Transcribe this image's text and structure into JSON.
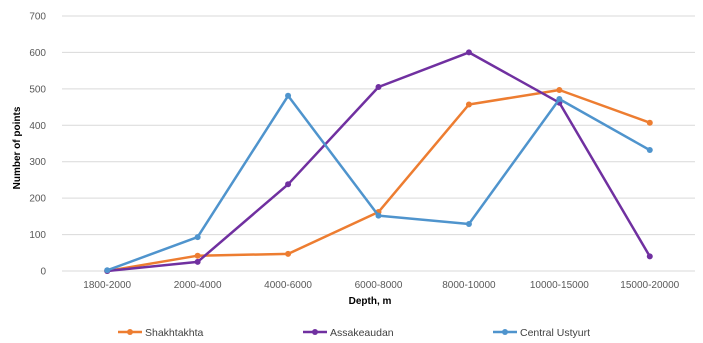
{
  "chart_data": {
    "type": "line",
    "categories": [
      "1800-2000",
      "2000-4000",
      "4000-6000",
      "6000-8000",
      "8000-10000",
      "10000-15000",
      "15000-20000"
    ],
    "series": [
      {
        "name": "Shakhtakhta",
        "color": "#ED7D31",
        "values": [
          0,
          42,
          47,
          162,
          457,
          497,
          407
        ]
      },
      {
        "name": "Assakeaudan",
        "color": "#7030A0",
        "values": [
          0,
          25,
          238,
          505,
          600,
          462,
          40
        ]
      },
      {
        "name": "Central Ustyurt",
        "color": "#4F94CD",
        "values": [
          2,
          93,
          481,
          152,
          129,
          472,
          332
        ]
      }
    ],
    "xlabel": "Depth, m",
    "ylabel": "Number of points",
    "ylim": [
      0,
      700
    ],
    "yticks": [
      0,
      100,
      200,
      300,
      400,
      500,
      600,
      700
    ],
    "grid": true,
    "legend_position": "bottom"
  }
}
